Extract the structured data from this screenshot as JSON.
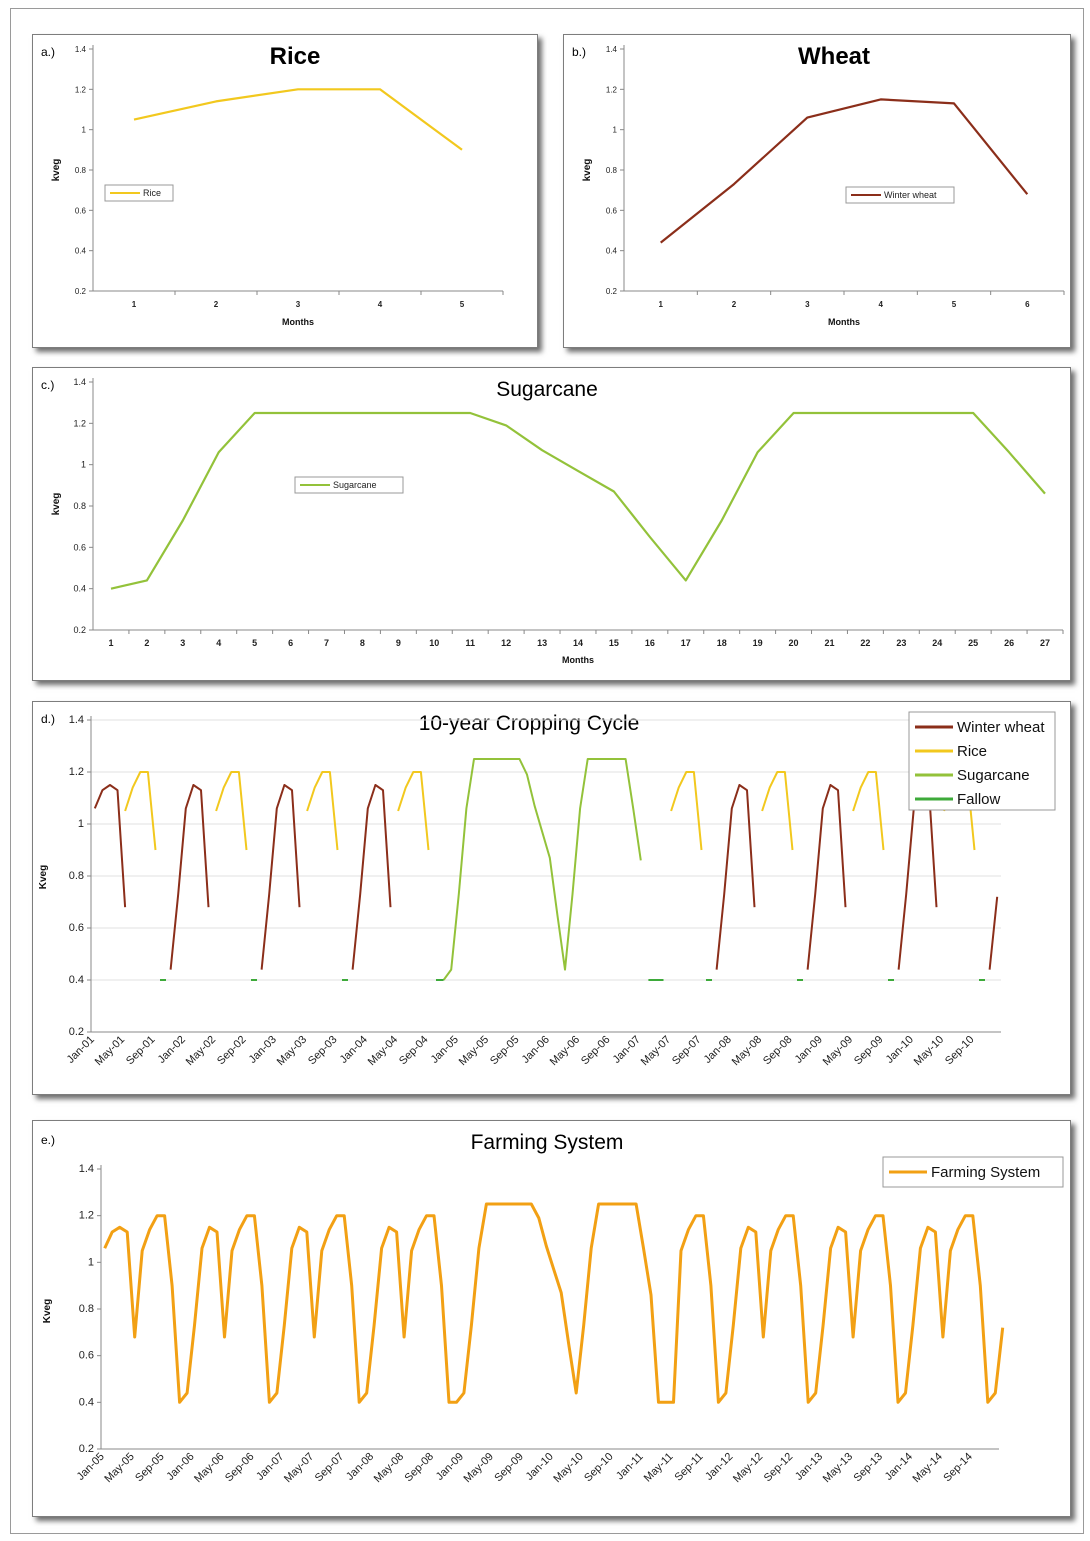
{
  "colors": {
    "rice": "#f2c81e",
    "winter_wheat": "#8b2e1a",
    "sugarcane": "#93c23a",
    "fallow": "#3daa3a",
    "farming_system": "#f2a014",
    "grid": "#d9d9d9"
  },
  "chart_data": [
    {
      "id": "a",
      "panel_label": "a.)",
      "type": "line",
      "title": "Rice",
      "xlabel": "Months",
      "ylabel": "kveg",
      "ylim": [
        0.2,
        1.4
      ],
      "yticks": [
        "0.2",
        "0.4",
        "0.6",
        "0.8",
        "1",
        "1.2",
        "1.4"
      ],
      "categories": [
        "1",
        "2",
        "3",
        "4",
        "5"
      ],
      "legend": {
        "placement": "left-middle"
      },
      "series": [
        {
          "name": "Rice",
          "color": "#f2c81e",
          "values": [
            1.05,
            1.14,
            1.2,
            1.2,
            0.9
          ]
        }
      ]
    },
    {
      "id": "b",
      "panel_label": "b.)",
      "type": "line",
      "title": "Wheat",
      "xlabel": "Months",
      "ylabel": "kveg",
      "ylim": [
        0.2,
        1.4
      ],
      "yticks": [
        "0.2",
        "0.4",
        "0.6",
        "0.8",
        "1",
        "1.2",
        "1.4"
      ],
      "categories": [
        "1",
        "2",
        "3",
        "4",
        "5",
        "6"
      ],
      "legend": {
        "placement": "right-middle"
      },
      "series": [
        {
          "name": "Winter wheat",
          "color": "#8b2e1a",
          "values": [
            0.44,
            0.73,
            1.06,
            1.15,
            1.13,
            0.68
          ]
        }
      ]
    },
    {
      "id": "c",
      "panel_label": "c.)",
      "type": "line",
      "title": "Sugarcane",
      "xlabel": "Months",
      "ylabel": "kveg",
      "ylim": [
        0.2,
        1.4
      ],
      "yticks": [
        "0.2",
        "0.4",
        "0.6",
        "0.8",
        "1",
        "1.2",
        "1.4"
      ],
      "categories": [
        "1",
        "2",
        "3",
        "4",
        "5",
        "6",
        "7",
        "8",
        "9",
        "10",
        "11",
        "12",
        "13",
        "14",
        "15",
        "16",
        "17",
        "18",
        "19",
        "20",
        "21",
        "22",
        "23",
        "24",
        "25",
        "26",
        "27"
      ],
      "legend": {
        "placement": "left-middle"
      },
      "series": [
        {
          "name": "Sugarcane",
          "color": "#93c23a",
          "values": [
            0.4,
            0.44,
            0.73,
            1.06,
            1.25,
            1.25,
            1.25,
            1.25,
            1.25,
            1.25,
            1.25,
            1.19,
            1.07,
            0.97,
            0.87,
            0.65,
            0.44,
            0.73,
            1.06,
            1.25,
            1.25,
            1.25,
            1.25,
            1.25,
            1.25,
            1.06,
            0.86
          ]
        }
      ]
    },
    {
      "id": "d",
      "panel_label": "d.)",
      "type": "line",
      "title": "10-year Cropping Cycle",
      "xlabel": "",
      "ylabel": "Kveg",
      "ylim": [
        0.2,
        1.4
      ],
      "yticks": [
        "0.2",
        "0.4",
        "0.6",
        "0.8",
        "1",
        "1.2",
        "1.4"
      ],
      "x_count": 120,
      "x_tick_labels": [
        "Jan-01",
        "May-01",
        "Sep-01",
        "Jan-02",
        "May-02",
        "Sep-02",
        "Jan-03",
        "May-03",
        "Sep-03",
        "Jan-04",
        "May-04",
        "Sep-04",
        "Jan-05",
        "May-05",
        "Sep-05",
        "Jan-06",
        "May-06",
        "Sep-06",
        "Jan-07",
        "May-07",
        "Sep-07",
        "Jan-08",
        "May-08",
        "Sep-08",
        "Jan-09",
        "May-09",
        "Sep-09",
        "Jan-10",
        "May-10",
        "Sep-10"
      ],
      "legend": {
        "placement": "top-right"
      },
      "series": [
        {
          "name": "Winter wheat",
          "color": "#8b2e1a",
          "segments": [
            {
              "start": 0,
              "values": [
                1.06,
                1.13,
                1.15,
                1.13,
                0.68
              ]
            },
            {
              "start": 10,
              "values": [
                0.44,
                0.73,
                1.06,
                1.15,
                1.13,
                0.68
              ]
            },
            {
              "start": 22,
              "values": [
                0.44,
                0.73,
                1.06,
                1.15,
                1.13,
                0.68
              ]
            },
            {
              "start": 34,
              "values": [
                0.44,
                0.73,
                1.06,
                1.15,
                1.13,
                0.68
              ]
            },
            {
              "start": 82,
              "values": [
                0.44,
                0.73,
                1.06,
                1.15,
                1.13,
                0.68
              ]
            },
            {
              "start": 94,
              "values": [
                0.44,
                0.73,
                1.06,
                1.15,
                1.13,
                0.68
              ]
            },
            {
              "start": 106,
              "values": [
                0.44,
                0.73,
                1.06,
                1.15,
                1.13,
                0.68
              ]
            },
            {
              "start": 118,
              "values": [
                0.44,
                0.72
              ]
            }
          ]
        },
        {
          "name": "Rice",
          "color": "#f2c81e",
          "segments": [
            {
              "start": 4,
              "values": [
                1.05,
                1.14,
                1.2,
                1.2,
                0.9
              ]
            },
            {
              "start": 16,
              "values": [
                1.05,
                1.14,
                1.2,
                1.2,
                0.9
              ]
            },
            {
              "start": 28,
              "values": [
                1.05,
                1.14,
                1.2,
                1.2,
                0.9
              ]
            },
            {
              "start": 40,
              "values": [
                1.05,
                1.14,
                1.2,
                1.2,
                0.9
              ]
            },
            {
              "start": 76,
              "values": [
                1.05,
                1.14,
                1.2,
                1.2,
                0.9
              ]
            },
            {
              "start": 88,
              "values": [
                1.05,
                1.14,
                1.2,
                1.2,
                0.9
              ]
            },
            {
              "start": 100,
              "values": [
                1.05,
                1.14,
                1.2,
                1.2,
                0.9
              ]
            },
            {
              "start": 112,
              "values": [
                1.05,
                1.14,
                1.2,
                1.2,
                0.9
              ]
            }
          ]
        },
        {
          "name": "Sugarcane",
          "color": "#93c23a",
          "segments": [
            {
              "start": 46,
              "values": [
                0.4,
                0.44,
                0.73,
                1.06,
                1.25,
                1.25,
                1.25,
                1.25,
                1.25,
                1.25,
                1.25,
                1.19,
                1.07,
                0.97,
                0.87,
                0.65,
                0.44,
                0.73,
                1.06,
                1.25,
                1.25,
                1.25,
                1.25,
                1.25,
                1.25,
                1.06,
                0.86
              ]
            }
          ]
        },
        {
          "name": "Fallow",
          "color": "#3daa3a",
          "segments": [
            {
              "start": 9,
              "values": [
                0.4
              ]
            },
            {
              "start": 21,
              "values": [
                0.4
              ]
            },
            {
              "start": 33,
              "values": [
                0.4
              ]
            },
            {
              "start": 45,
              "values": [
                0.4,
                0.4
              ]
            },
            {
              "start": 73,
              "values": [
                0.4,
                0.4,
                0.4
              ]
            },
            {
              "start": 81,
              "values": [
                0.4
              ]
            },
            {
              "start": 93,
              "values": [
                0.4
              ]
            },
            {
              "start": 105,
              "values": [
                0.4
              ]
            },
            {
              "start": 117,
              "values": [
                0.4
              ]
            }
          ]
        }
      ]
    },
    {
      "id": "e",
      "panel_label": "e.)",
      "type": "line",
      "title": "Farming System",
      "xlabel": "",
      "ylabel": "Kveg",
      "ylim": [
        0.2,
        1.4
      ],
      "yticks": [
        "0.2",
        "0.4",
        "0.6",
        "0.8",
        "1",
        "1.2",
        "1.4"
      ],
      "x_count": 120,
      "x_tick_labels": [
        "Jan-05",
        "May-05",
        "Sep-05",
        "Jan-06",
        "May-06",
        "Sep-06",
        "Jan-07",
        "May-07",
        "Sep-07",
        "Jan-08",
        "May-08",
        "Sep-08",
        "Jan-09",
        "May-09",
        "Sep-09",
        "Jan-10",
        "May-10",
        "Sep-10",
        "Jan-11",
        "May-11",
        "Sep-11",
        "Jan-12",
        "May-12",
        "Sep-12",
        "Jan-13",
        "May-13",
        "Sep-13",
        "Jan-14",
        "May-14",
        "Sep-14"
      ],
      "legend": {
        "placement": "top-right"
      },
      "series": [
        {
          "name": "Farming System",
          "color": "#f2a014",
          "values": [
            1.06,
            1.13,
            1.15,
            1.13,
            0.68,
            1.05,
            1.14,
            1.2,
            1.2,
            0.9,
            0.4,
            0.44,
            0.73,
            1.06,
            1.15,
            1.13,
            0.68,
            1.05,
            1.14,
            1.2,
            1.2,
            0.9,
            0.4,
            0.44,
            0.73,
            1.06,
            1.15,
            1.13,
            0.68,
            1.05,
            1.14,
            1.2,
            1.2,
            0.9,
            0.4,
            0.44,
            0.73,
            1.06,
            1.15,
            1.13,
            0.68,
            1.05,
            1.14,
            1.2,
            1.2,
            0.9,
            0.4,
            0.4,
            0.44,
            0.73,
            1.06,
            1.25,
            1.25,
            1.25,
            1.25,
            1.25,
            1.25,
            1.25,
            1.19,
            1.07,
            0.97,
            0.87,
            0.65,
            0.44,
            0.73,
            1.06,
            1.25,
            1.25,
            1.25,
            1.25,
            1.25,
            1.25,
            1.06,
            0.86,
            0.4,
            0.4,
            0.4,
            1.05,
            1.14,
            1.2,
            1.2,
            0.9,
            0.4,
            0.44,
            0.73,
            1.06,
            1.15,
            1.13,
            0.68,
            1.05,
            1.14,
            1.2,
            1.2,
            0.9,
            0.4,
            0.44,
            0.73,
            1.06,
            1.15,
            1.13,
            0.68,
            1.05,
            1.14,
            1.2,
            1.2,
            0.9,
            0.4,
            0.44,
            0.73,
            1.06,
            1.15,
            1.13,
            0.68,
            1.05,
            1.14,
            1.2,
            1.2,
            0.9,
            0.4,
            0.44,
            0.72
          ]
        }
      ]
    }
  ]
}
